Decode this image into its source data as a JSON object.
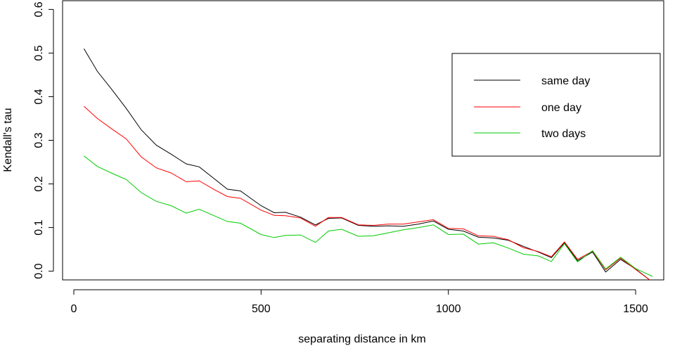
{
  "chart_data": {
    "type": "line",
    "xlabel": "separating distance in km",
    "ylabel": "Kendall's tau",
    "xlim": [
      -30,
      1575
    ],
    "ylim": [
      -0.02,
      0.62
    ],
    "xticks": [
      0,
      500,
      1000,
      1500
    ],
    "yticks": [
      0.0,
      0.1,
      0.2,
      0.3,
      0.4,
      0.5,
      0.6
    ],
    "xtick_labels": [
      "0",
      "500",
      "1000",
      "1500"
    ],
    "ytick_labels": [
      "0.0",
      "0.1",
      "0.2",
      "0.3",
      "0.4",
      "0.5",
      "0.6"
    ],
    "legend_position": "top-right",
    "x": [
      27,
      63,
      100,
      140,
      180,
      220,
      260,
      300,
      335,
      375,
      410,
      445,
      500,
      535,
      565,
      605,
      645,
      680,
      715,
      760,
      800,
      840,
      880,
      920,
      960,
      1000,
      1040,
      1080,
      1120,
      1160,
      1200,
      1240,
      1275,
      1310,
      1345,
      1385,
      1420,
      1460,
      1500,
      1545
    ],
    "series": [
      {
        "name": "same day",
        "color": "#000000",
        "values": [
          0.51,
          0.458,
          0.418,
          0.373,
          0.324,
          0.289,
          0.268,
          0.246,
          0.239,
          0.212,
          0.188,
          0.184,
          0.15,
          0.134,
          0.135,
          0.124,
          0.106,
          0.121,
          0.122,
          0.105,
          0.103,
          0.104,
          0.103,
          0.108,
          0.115,
          0.096,
          0.092,
          0.078,
          0.076,
          0.071,
          0.057,
          0.044,
          0.031,
          0.065,
          0.024,
          0.044,
          -0.002,
          0.027,
          0.005,
          -0.025
        ]
      },
      {
        "name": "one day",
        "color": "#ff0000",
        "values": [
          0.378,
          0.35,
          0.327,
          0.303,
          0.262,
          0.237,
          0.225,
          0.205,
          0.207,
          0.187,
          0.171,
          0.167,
          0.14,
          0.128,
          0.127,
          0.122,
          0.103,
          0.123,
          0.123,
          0.106,
          0.105,
          0.108,
          0.108,
          0.113,
          0.118,
          0.098,
          0.097,
          0.081,
          0.08,
          0.072,
          0.054,
          0.045,
          0.033,
          0.067,
          0.027,
          0.046,
          0.003,
          0.03,
          0.004,
          -0.025
        ]
      },
      {
        "name": "two days",
        "color": "#00cc00",
        "values": [
          0.264,
          0.24,
          0.225,
          0.21,
          0.18,
          0.16,
          0.15,
          0.133,
          0.142,
          0.127,
          0.114,
          0.11,
          0.084,
          0.077,
          0.082,
          0.083,
          0.066,
          0.092,
          0.096,
          0.08,
          0.081,
          0.088,
          0.095,
          0.1,
          0.106,
          0.084,
          0.085,
          0.062,
          0.065,
          0.053,
          0.039,
          0.035,
          0.022,
          0.063,
          0.021,
          0.047,
          0.005,
          0.032,
          0.006,
          -0.012
        ]
      }
    ]
  }
}
